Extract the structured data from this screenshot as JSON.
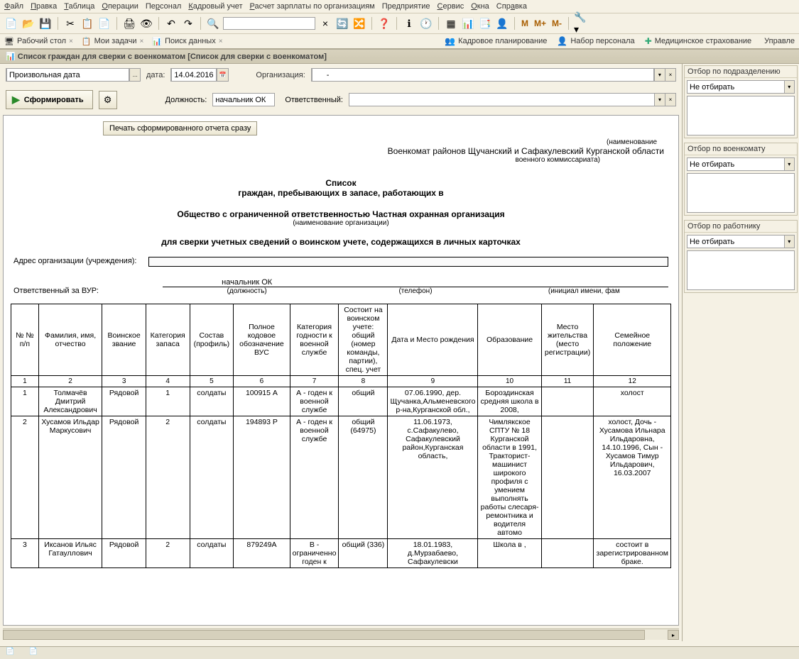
{
  "menu": {
    "items": [
      "Файл",
      "Правка",
      "Таблица",
      "Операции",
      "Персонал",
      "Кадровый учет",
      "Расчет зарплаты по организациям",
      "Предприятие",
      "Сервис",
      "Окна",
      "Справка"
    ],
    "underlines": [
      0,
      0,
      0,
      0,
      2,
      0,
      0,
      3,
      0,
      0,
      3
    ]
  },
  "toolbar": {
    "group1": [
      "📄",
      "📂",
      "💾"
    ],
    "group2": [
      "✂",
      "📋",
      "📄"
    ],
    "group3": [
      "🖨",
      "👁"
    ],
    "group4": [
      "↶",
      "↷"
    ],
    "search_icon": "🔍",
    "search_extra": [
      "×",
      "🔄",
      "🔀"
    ],
    "help": "❓",
    "info": "ℹ",
    "clock": "🕐",
    "extra": [
      "▦",
      "📊",
      "📑",
      "👤"
    ],
    "m_buttons": [
      "M",
      "M+",
      "M-"
    ],
    "wrench": "🔧"
  },
  "tabs": {
    "left": [
      {
        "icon": "🖥",
        "label": "Рабочий стол",
        "close": "×"
      },
      {
        "icon": "📋",
        "label": "Мои задачи",
        "close": "×"
      },
      {
        "icon": "📊",
        "label": "Поиск данных",
        "close": "×"
      }
    ],
    "right": [
      {
        "icon": "👥",
        "label": "Кадровое планирование",
        "color": "#6aa84f"
      },
      {
        "icon": "👤",
        "label": "Набор персонала",
        "color": "#4a8"
      },
      {
        "icon": "✚",
        "label": "Медицинское страхование",
        "color": "#3a7"
      },
      {
        "icon": "",
        "label": "Управле"
      }
    ]
  },
  "doc_title": "Список граждан для сверки с военкоматом [Список для сверки с военкоматом]",
  "filters": {
    "period_label": "Произвольная дата",
    "date_label": "дата:",
    "date_value": "14.04.2016",
    "org_label": "Организация:",
    "org_value": "-",
    "form_button": "Сформировать",
    "position_label": "Должность:",
    "position_value": "начальник ОК",
    "resp_label": "Ответственный:",
    "resp_value": ""
  },
  "print_button": "Печать сформированного отчета сразу",
  "report": {
    "naim": "(наименование",
    "commissariat": "Военкомат районов Щучанский и Сафакулевский Курганской области",
    "commissariat_sub": "военного коммиссариата)",
    "title1": "Список",
    "title2": "граждан, пребывающих в запасе, работающих в",
    "org_name": "Общество с ограниченной ответственностью Частная охранная организация",
    "org_label": "(наименование организации)",
    "title3": "для сверки учетных сведений о воинском учете, содержащихся в личных карточках",
    "addr_label": "Адрес организации (учреждения):",
    "resp_label": "Ответственный за ВУР:",
    "resp_cells": [
      {
        "value": "начальник ОК",
        "label": "(должность)"
      },
      {
        "value": "",
        "label": "(телефон)"
      },
      {
        "value": "",
        "label": "(инициал имени, фам"
      }
    ]
  },
  "table": {
    "headers": [
      "№ № п/п",
      "Фамилия, имя, отчество",
      "Воинское звание",
      "Категория запаса",
      "Состав (профиль)",
      "Полное кодовое обозначение ВУС",
      "Категория годности к военной службе",
      "Состоит на воинском учете: общий (номер команды, партии), спец. учет",
      "Дата и Место рождения",
      "Образование",
      "Место жительства (место регистрации)",
      "Семейное положение"
    ],
    "numbers": [
      "1",
      "2",
      "3",
      "4",
      "5",
      "6",
      "7",
      "8",
      "9",
      "10",
      "11",
      "12"
    ],
    "col_widths": [
      "40px",
      "90px",
      "62px",
      "62px",
      "62px",
      "80px",
      "68px",
      "70px",
      "88px",
      "90px",
      "74px",
      "100px"
    ],
    "rows": [
      {
        "n": "1",
        "fio": "Толмачёв Дмитрий Александрович",
        "rank": "Рядовой",
        "cat": "1",
        "profile": "солдаты",
        "vus": "100915 А",
        "fitness": "А - годен к военной службе",
        "register": "общий",
        "birth": "07.06.1990, дер. Щучанка,Альменевского р-на,Курганской обл.,",
        "edu": "Бороздинская средняя школа в 2008,",
        "addr": "",
        "family": "холост"
      },
      {
        "n": "2",
        "fio": "Хусамов Ильдар Маркусович",
        "rank": "Рядовой",
        "cat": "2",
        "profile": "солдаты",
        "vus": "194893 Р",
        "fitness": "А - годен к военной службе",
        "register": "общий (64975)",
        "birth": "11.06.1973, с.Сафакулево, Сафакулевский район,Курганская область,",
        "edu": "Чимлякское СПТУ № 18 Курганской области в 1991, Тракторист-машинист широкого профиля с умением выполнять работы слесаря-ремонтника и водителя автомо",
        "addr": "",
        "family": "холост, Дочь - Хусамова Ильнара Ильдаровна, 14.10.1996, Сын - Хусамов Тимур Ильдарович, 16.03.2007"
      },
      {
        "n": "3",
        "fio": "Иксанов Ильяс Гатауллович",
        "rank": "Рядовой",
        "cat": "2",
        "profile": "солдаты",
        "vus": "879249А",
        "fitness": "В - ограниченно годен к",
        "register": "общий (336)",
        "birth": "18.01.1983, д.Мурзабаево, Сафакулевски",
        "edu": "Школа в ,",
        "addr": "",
        "family": "состоит в зарегистрированном браке."
      }
    ]
  },
  "side": {
    "blocks": [
      {
        "title": "Отбор по подразделению",
        "select": "Не отбирать"
      },
      {
        "title": "Отбор по военкомату",
        "select": "Не отбирать"
      },
      {
        "title": "Отбор по работнику",
        "select": "Не отбирать"
      }
    ]
  },
  "colors": {
    "bg": "#f5f1e4",
    "border": "#b0aa95",
    "btn_grad1": "#fdfbf2",
    "btn_grad2": "#ece7d3"
  }
}
